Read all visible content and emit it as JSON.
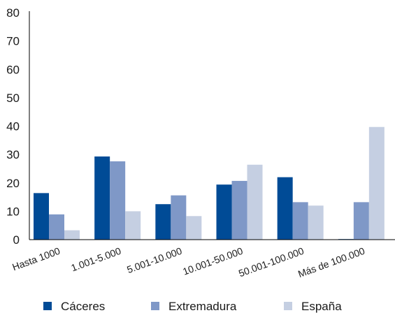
{
  "chart_data": {
    "type": "bar",
    "categories": [
      "Hasta 1000",
      "1.001-5.000",
      "5.001-10.000",
      "10.001-50.000",
      "50.001-100.000",
      "Más de 100.000"
    ],
    "series": [
      {
        "name": "Cáceres",
        "color": "#004b96",
        "values": [
          16.4,
          29.3,
          12.5,
          19.4,
          22.0,
          0.2
        ]
      },
      {
        "name": "Extremadura",
        "color": "#7f98c7",
        "values": [
          8.9,
          27.6,
          15.6,
          20.7,
          13.2,
          13.2
        ]
      },
      {
        "name": "España",
        "color": "#c5cfe2",
        "values": [
          3.3,
          10.0,
          8.3,
          26.4,
          12.0,
          39.7
        ]
      }
    ],
    "ylim": [
      0,
      80
    ],
    "yticks": [
      "0",
      "10",
      "20",
      "30",
      "40",
      "50",
      "60",
      "70",
      "80"
    ],
    "grid": false,
    "legend_position": "bottom"
  }
}
